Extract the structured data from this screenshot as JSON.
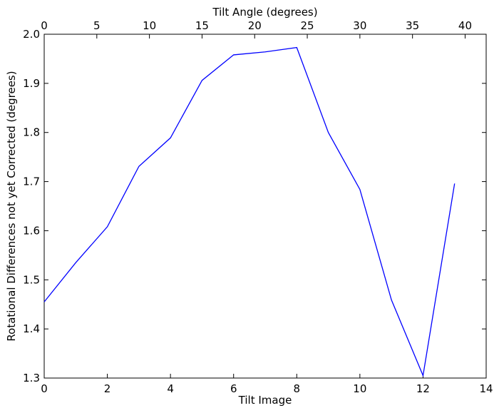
{
  "chart_data": {
    "type": "line",
    "title": "",
    "xlabel": "Tilt Image",
    "ylabel": "Rotational Differences not yet Corrected (degrees)",
    "x2label": "Tilt Angle (degrees)",
    "xlim": [
      0,
      14
    ],
    "ylim": [
      1.3,
      2.0
    ],
    "x2lim": [
      0,
      42
    ],
    "xticks": [
      "0",
      "2",
      "4",
      "6",
      "8",
      "10",
      "12",
      "14"
    ],
    "yticks": [
      "1.3",
      "1.4",
      "1.5",
      "1.6",
      "1.7",
      "1.8",
      "1.9",
      "2.0"
    ],
    "x2ticks": [
      "0",
      "5",
      "10",
      "15",
      "20",
      "25",
      "30",
      "35",
      "40"
    ],
    "grid": false,
    "line_color": "#0000ff",
    "series": [
      {
        "x": [
          0,
          1,
          2,
          3,
          4,
          5,
          6,
          7,
          8,
          9,
          10,
          11,
          12,
          13
        ],
        "values": [
          1.455,
          1.535,
          1.608,
          1.731,
          1.789,
          1.906,
          1.958,
          1.964,
          1.973,
          1.8,
          1.684,
          1.459,
          1.305,
          1.696
        ]
      }
    ]
  }
}
